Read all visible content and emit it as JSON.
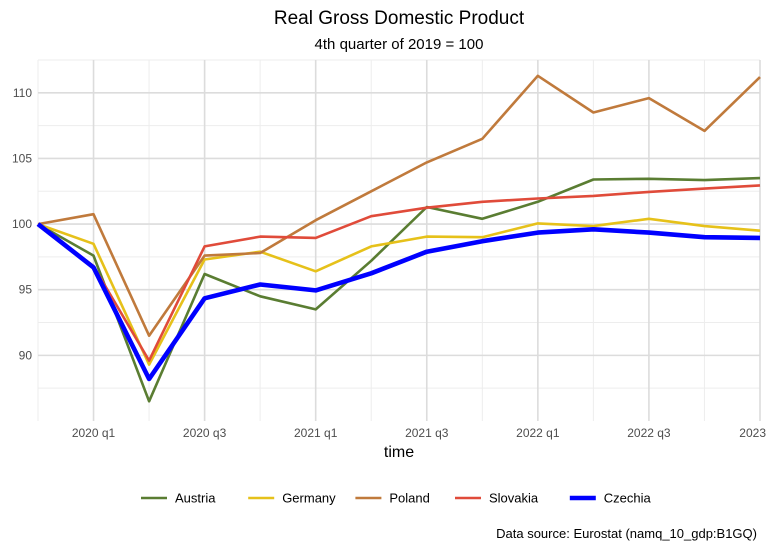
{
  "chart_data": {
    "type": "line",
    "title": "Real Gross Domestic Product",
    "subtitle": "4th quarter of 2019 = 100",
    "xlabel": "time",
    "ylabel": "",
    "caption": "Data source: Eurostat (namq_10_gdp:B1GQ)",
    "x": [
      "2019 q4",
      "2020 q1",
      "2020 q2",
      "2020 q3",
      "2020 q4",
      "2021 q1",
      "2021 q2",
      "2021 q3",
      "2021 q4",
      "2022 q1",
      "2022 q2",
      "2022 q3",
      "2022 q4",
      "2023 q1"
    ],
    "x_ticks": [
      {
        "index": 1,
        "label": "2020 q1"
      },
      {
        "index": 3,
        "label": "2020 q3"
      },
      {
        "index": 5,
        "label": "2021 q1"
      },
      {
        "index": 7,
        "label": "2021 q3"
      },
      {
        "index": 9,
        "label": "2022 q1"
      },
      {
        "index": 11,
        "label": "2022 q3"
      },
      {
        "index": 13,
        "label": "2023"
      }
    ],
    "ylim": [
      85,
      112.5
    ],
    "y_ticks": [
      90,
      95,
      100,
      105,
      110
    ],
    "grid": true,
    "legend_position": "bottom",
    "series": [
      {
        "name": "Austria",
        "color": "#5a7d32",
        "emphasis": false,
        "values": [
          100,
          97.6,
          86.5,
          96.2,
          94.5,
          93.5,
          97.2,
          101.3,
          100.4,
          101.7,
          103.4,
          103.45,
          103.35,
          103.5
        ]
      },
      {
        "name": "Germany",
        "color": "#e6c11a",
        "emphasis": false,
        "values": [
          100,
          98.5,
          89.3,
          97.3,
          97.9,
          96.4,
          98.3,
          99.05,
          99.0,
          100.05,
          99.85,
          100.4,
          99.85,
          99.5
        ]
      },
      {
        "name": "Poland",
        "color": "#c07a3c",
        "emphasis": false,
        "values": [
          100,
          100.75,
          91.5,
          97.6,
          97.8,
          100.3,
          102.5,
          104.7,
          106.5,
          111.3,
          108.5,
          109.6,
          107.1,
          111.2
        ]
      },
      {
        "name": "Slovakia",
        "color": "#e04b3a",
        "emphasis": false,
        "values": [
          100,
          96.8,
          89.6,
          98.3,
          99.05,
          98.95,
          100.6,
          101.25,
          101.7,
          101.95,
          102.15,
          102.45,
          102.7,
          102.95
        ]
      },
      {
        "name": "Czechia",
        "color": "#0000ff",
        "emphasis": true,
        "values": [
          100,
          96.7,
          88.2,
          94.35,
          95.4,
          94.95,
          96.25,
          97.9,
          98.7,
          99.35,
          99.6,
          99.35,
          99.0,
          98.95
        ]
      }
    ]
  }
}
